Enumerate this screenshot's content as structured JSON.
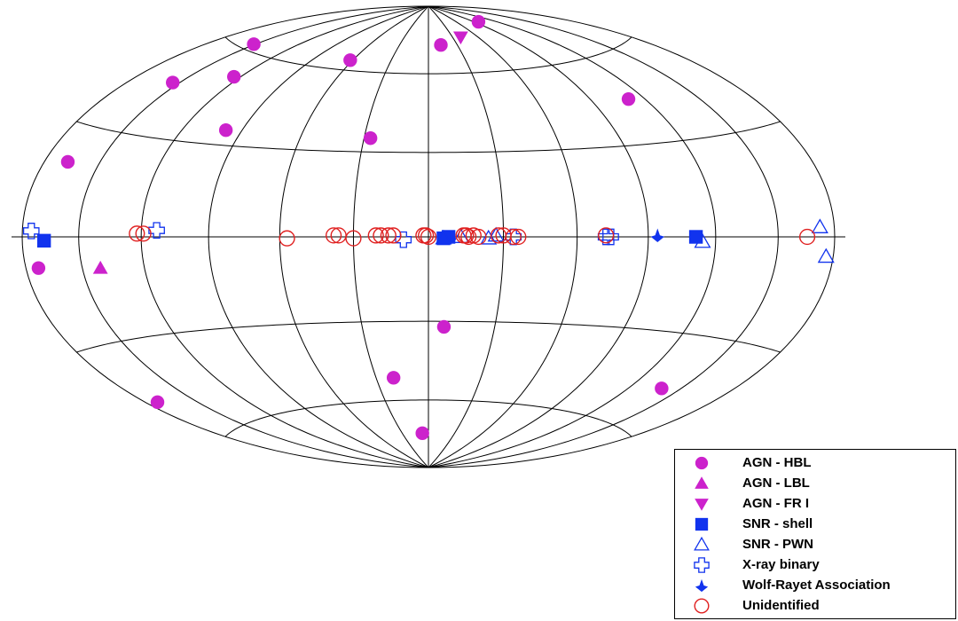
{
  "chart_data": {
    "type": "scatter",
    "title": "",
    "projection": "Hammer-Aitoff (all-sky)",
    "grid": true,
    "legend_position": "bottom-right",
    "x_range_deg": [
      -180,
      180
    ],
    "y_range_deg": [
      -90,
      90
    ],
    "colors": {
      "agn": "#cc22cc",
      "galactic": "#1133ee",
      "unidentified": "#e02020",
      "grid": "#000000"
    },
    "series": [
      {
        "name": "AGN - HBL",
        "marker": "circle-filled",
        "color": "#cc22cc",
        "points": [
          [
            -124,
            52
          ],
          [
            -62,
            64
          ],
          [
            -151,
            62
          ],
          [
            -154,
            46
          ],
          [
            -98,
            35
          ],
          [
            -27,
            35
          ],
          [
            111,
            45
          ],
          [
            13,
            72
          ],
          [
            97,
            80
          ],
          [
            -167,
            20
          ],
          [
            -173,
            -8
          ],
          [
            7,
            -32
          ],
          [
            -20,
            -51
          ],
          [
            -7,
            -74
          ],
          [
            -173,
            -47
          ],
          [
            139,
            -47
          ]
        ]
      },
      {
        "name": "AGN - LBL",
        "marker": "triangle-up-filled",
        "color": "#cc22cc",
        "points": [
          [
            -141,
            -9
          ]
        ]
      },
      {
        "name": "AGN - FR I",
        "marker": "triangle-down-filled",
        "color": "#cc22cc",
        "points": [
          [
            40,
            75
          ]
        ]
      },
      {
        "name": "SNR - shell",
        "marker": "square-filled",
        "color": "#1133ee",
        "points": [
          [
            -168,
            -1
          ],
          [
            8,
            0
          ],
          [
            6,
            -0.5
          ],
          [
            111,
            0
          ]
        ]
      },
      {
        "name": "SNR - PWN",
        "marker": "triangle-up-open",
        "color": "#1133ee",
        "points": [
          [
            6,
            -0.5
          ],
          [
            13,
            0
          ],
          [
            24,
            -0.5
          ],
          [
            27,
            0.5
          ],
          [
            114,
            -1.5
          ],
          [
            172,
            2.5
          ],
          [
            176,
            -5
          ]
        ]
      },
      {
        "name": "X-ray binary",
        "marker": "cross-open",
        "color": "#1133ee",
        "points": [
          [
            -175,
            1.5
          ],
          [
            -113,
            2
          ],
          [
            -10,
            -1
          ],
          [
            34,
            0
          ],
          [
            72,
            0
          ],
          [
            74,
            0
          ]
        ]
      },
      {
        "name": "Wolf-Rayet Association",
        "marker": "star-filled",
        "color": "#1133ee",
        "points": [
          [
            94,
            0.5
          ]
        ]
      },
      {
        "name": "Unidentified",
        "marker": "circle-open",
        "color": "#e02020",
        "points": [
          [
            -122,
            1
          ],
          [
            -119,
            1
          ],
          [
            -57,
            -0.5
          ],
          [
            -38,
            0.5
          ],
          [
            -36,
            0.5
          ],
          [
            -30,
            -0.5
          ],
          [
            -21,
            0.5
          ],
          [
            -19,
            0.5
          ],
          [
            -16,
            0.5
          ],
          [
            -14,
            0.5
          ],
          [
            -2,
            0.5
          ],
          [
            -1,
            0.5
          ],
          [
            0,
            0
          ],
          [
            14,
            0.5
          ],
          [
            15,
            0.5
          ],
          [
            16,
            0
          ],
          [
            18,
            0.5
          ],
          [
            20,
            0
          ],
          [
            28,
            0.5
          ],
          [
            30,
            0.5
          ],
          [
            34,
            0
          ],
          [
            36,
            0
          ],
          [
            72,
            0.5
          ],
          [
            165,
            0
          ]
        ]
      }
    ]
  }
}
